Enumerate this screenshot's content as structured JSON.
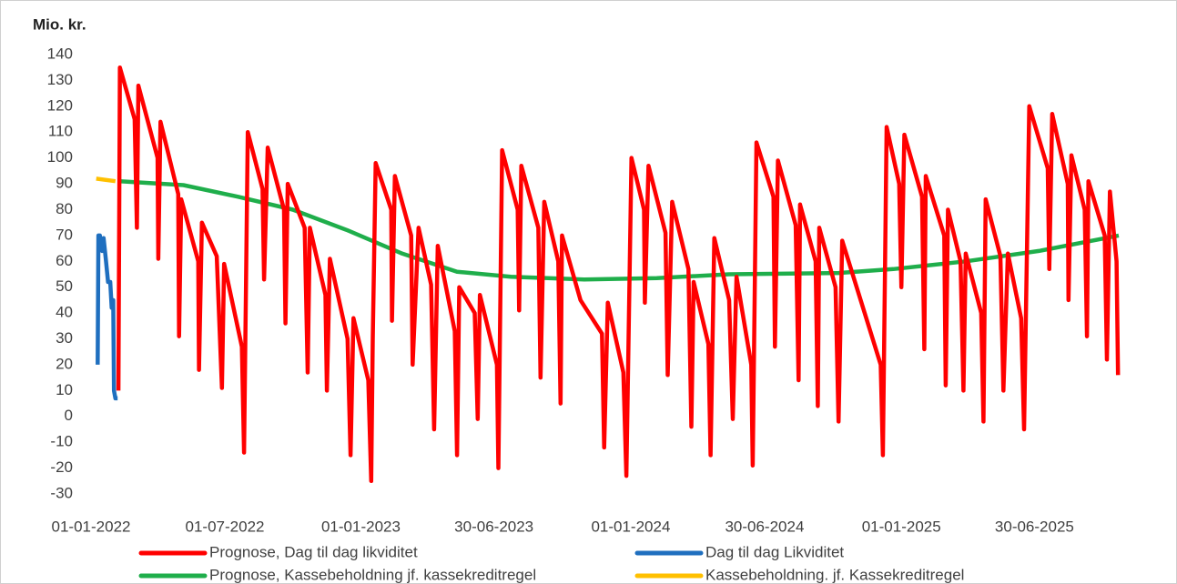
{
  "chart_data": {
    "type": "line",
    "y_label": "Mio. kr.",
    "xlim": [
      "01-01-2022",
      "22-10-2025"
    ],
    "xticks": [
      "01-01-2022",
      "01-07-2022",
      "01-01-2023",
      "30-06-2023",
      "01-01-2024",
      "30-06-2024",
      "01-01-2025",
      "30-06-2025"
    ],
    "ylim": [
      -30,
      140
    ],
    "yticks": [
      -30,
      -20,
      -10,
      0,
      10,
      20,
      30,
      40,
      50,
      60,
      70,
      80,
      90,
      100,
      110,
      120,
      130,
      140
    ],
    "grid": false,
    "legend": "bottom",
    "series": [
      {
        "name": "Prognose, Dag til dag likviditet",
        "color": "#ff0000",
        "x": [
          "07-02-2022",
          "09-02-2022",
          "01-03-2022",
          "04-03-2022",
          "06-03-2022",
          "01-04-2022",
          "02-04-2022",
          "05-04-2022",
          "29-04-2022",
          "30-04-2022",
          "03-05-2022",
          "26-05-2022",
          "27-05-2022",
          "31-05-2022",
          "20-06-2022",
          "27-06-2022",
          "30-06-2022",
          "24-07-2022",
          "27-07-2022",
          "01-08-2022",
          "21-08-2022",
          "23-08-2022",
          "28-08-2022",
          "19-09-2022",
          "21-09-2022",
          "24-09-2022",
          "17-10-2022",
          "21-10-2022",
          "24-10-2022",
          "14-11-2022",
          "16-11-2022",
          "20-11-2022",
          "14-12-2022",
          "18-12-2022",
          "22-12-2022",
          "11-01-2023",
          "15-01-2023",
          "17-01-2023",
          "21-01-2023",
          "11-02-2023",
          "12-02-2023",
          "16-02-2023",
          "10-03-2023",
          "12-03-2023",
          "20-03-2023",
          "06-04-2023",
          "10-04-2023",
          "15-04-2023",
          "08-05-2023",
          "11-05-2023",
          "14-05-2023",
          "04-06-2023",
          "08-06-2023",
          "11-06-2023",
          "04-07-2023",
          "06-07-2023",
          "11-07-2023",
          "01-08-2023",
          "03-08-2023",
          "06-08-2023",
          "29-08-2023",
          "01-09-2023",
          "06-09-2023",
          "25-09-2023",
          "28-09-2023",
          "30-09-2023",
          "25-10-2023",
          "23-11-2023",
          "26-11-2023",
          "01-12-2023",
          "22-12-2023",
          "26-12-2023",
          "02-01-2024",
          "19-01-2024",
          "20-01-2024",
          "25-01-2024",
          "17-02-2024",
          "20-02-2024",
          "26-02-2024",
          "19-03-2024",
          "23-03-2024",
          "26-03-2024",
          "15-04-2024",
          "18-04-2024",
          "23-04-2024",
          "13-05-2024",
          "18-05-2024",
          "23-05-2024",
          "12-06-2024",
          "14-06-2024",
          "19-06-2024",
          "12-07-2024",
          "14-07-2024",
          "18-07-2024",
          "11-08-2024",
          "15-08-2024",
          "17-08-2024",
          "07-09-2024",
          "10-09-2024",
          "12-09-2024",
          "04-10-2024",
          "08-10-2024",
          "13-10-2024",
          "04-12-2024",
          "07-12-2024",
          "12-12-2024",
          "29-12-2024",
          "01-01-2025",
          "05-01-2025",
          "29-01-2025",
          "01-02-2025",
          "03-02-2025",
          "28-02-2025",
          "02-03-2025",
          "05-03-2025",
          "22-03-2025",
          "26-03-2025",
          "29-03-2025",
          "19-04-2025",
          "22-04-2025",
          "25-04-2025",
          "15-05-2025",
          "19-05-2025",
          "25-05-2025",
          "12-06-2025",
          "16-06-2025",
          "23-06-2025",
          "18-07-2025",
          "20-07-2025",
          "24-07-2025",
          "14-08-2025",
          "15-08-2025",
          "19-08-2025",
          "06-09-2025",
          "09-09-2025",
          "11-09-2025",
          "03-10-2025",
          "06-10-2025",
          "10-10-2025",
          "19-10-2025",
          "21-10-2025"
        ],
        "values": [
          10,
          135,
          115,
          73,
          128,
          100,
          61,
          114,
          86,
          31,
          84,
          60,
          18,
          75,
          62,
          11,
          59,
          27,
          -14,
          110,
          88,
          53,
          104,
          80,
          36,
          90,
          73,
          17,
          73,
          47,
          10,
          61,
          30,
          -15,
          38,
          14,
          -25,
          30,
          98,
          80,
          37,
          93,
          70,
          20,
          73,
          51,
          -5,
          66,
          33,
          -15,
          50,
          40,
          -1,
          47,
          20,
          -20,
          103,
          80,
          41,
          97,
          73,
          15,
          83,
          60,
          5,
          70,
          45,
          32,
          -12,
          44,
          17,
          -23,
          100,
          80,
          44,
          97,
          71,
          16,
          83,
          57,
          -4,
          52,
          28,
          -15,
          69,
          45,
          -1,
          54,
          20,
          -19,
          106,
          85,
          27,
          99,
          74,
          14,
          82,
          60,
          4,
          73,
          50,
          -2,
          68,
          20,
          -15,
          112,
          90,
          50,
          109,
          85,
          26,
          93,
          70,
          12,
          80,
          60,
          10,
          63,
          40,
          -2,
          84,
          62,
          10,
          63,
          38,
          -5,
          120,
          96,
          57,
          117,
          90,
          45,
          101,
          80,
          31,
          91,
          70,
          22,
          87,
          60,
          16
        ]
      },
      {
        "name": "Dag til dag Likviditet",
        "color": "#1f6fbf",
        "x": [
          "10-01-2022",
          "11-01-2022",
          "13-01-2022",
          "16-01-2022",
          "18-01-2022",
          "21-01-2022",
          "24-01-2022",
          "27-01-2022",
          "29-01-2022",
          "31-01-2022",
          "01-02-2022",
          "03-02-2022",
          "06-02-2022"
        ],
        "values": [
          20,
          70,
          70,
          64,
          69,
          61,
          52,
          52,
          42,
          45,
          10,
          7,
          7
        ]
      },
      {
        "name": "Prognose, Kassebeholdning jf. kassekreditregel",
        "color": "#1fae4b",
        "x": [
          "09-02-2022",
          "06-05-2022",
          "19-07-2022",
          "01-10-2022",
          "14-12-2022",
          "26-02-2023",
          "11-05-2023",
          "23-07-2023",
          "30-10-2023",
          "05-02-2024",
          "13-05-2024",
          "08-10-2024",
          "21-12-2024",
          "29-03-2025",
          "06-07-2025",
          "22-10-2025"
        ],
        "values": [
          91,
          89.5,
          85,
          80,
          72,
          63,
          56,
          54,
          53,
          53.5,
          55,
          55.5,
          57,
          60,
          64,
          70
        ]
      },
      {
        "name": "Kassebeholdning. jf. Kassekreditregel",
        "color": "#ffc000",
        "x": [
          "08-01-2022",
          "03-02-2022"
        ],
        "values": [
          92,
          91
        ]
      }
    ]
  }
}
